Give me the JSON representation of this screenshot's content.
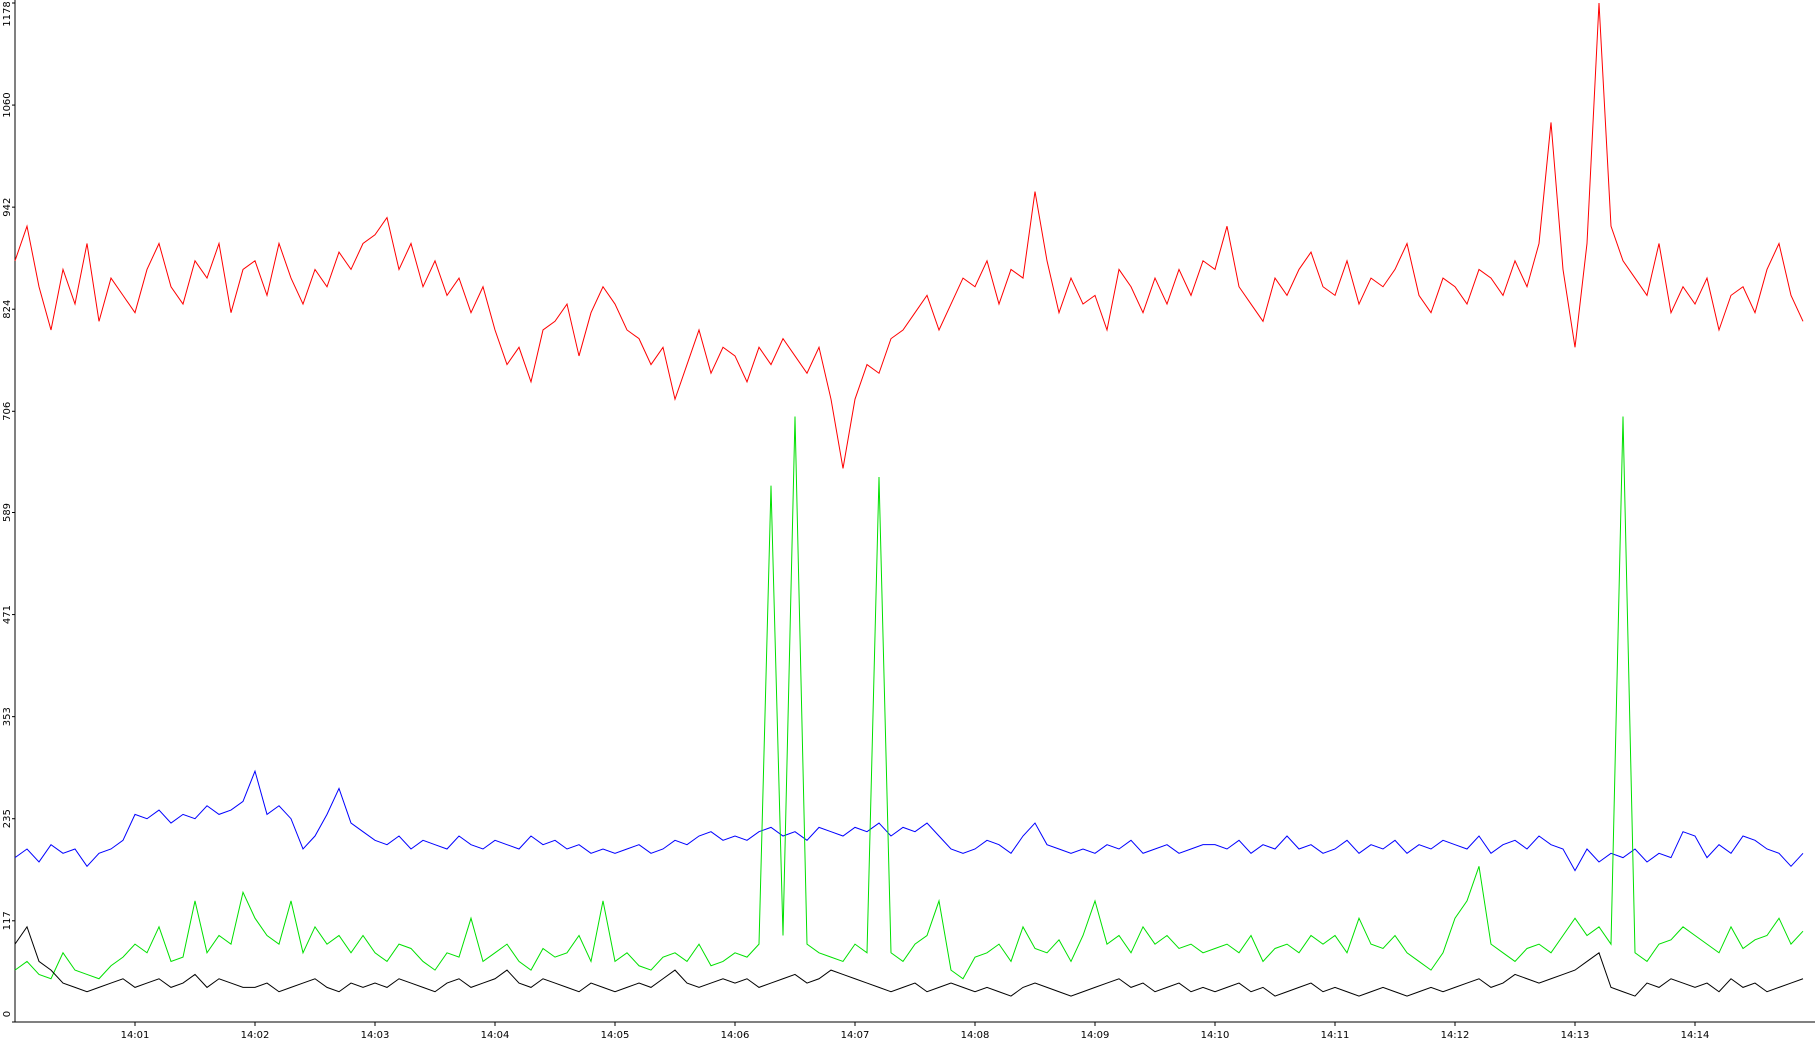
{
  "chart_data": {
    "type": "line",
    "xlim": [
      840,
      855
    ],
    "xticks": [
      {
        "value": 841,
        "label": "14:01"
      },
      {
        "value": 842,
        "label": "14:02"
      },
      {
        "value": 843,
        "label": "14:03"
      },
      {
        "value": 844,
        "label": "14:04"
      },
      {
        "value": 845,
        "label": "14:05"
      },
      {
        "value": 846,
        "label": "14:06"
      },
      {
        "value": 847,
        "label": "14:07"
      },
      {
        "value": 848,
        "label": "14:08"
      },
      {
        "value": 849,
        "label": "14:09"
      },
      {
        "value": 850,
        "label": "14:10"
      },
      {
        "value": 851,
        "label": "14:11"
      },
      {
        "value": 852,
        "label": "14:12"
      },
      {
        "value": 853,
        "label": "14:13"
      },
      {
        "value": 854,
        "label": "14:14"
      }
    ],
    "ylim": [
      0,
      1178
    ],
    "yticks": [
      0,
      117,
      235,
      353,
      471,
      589,
      706,
      824,
      942,
      1060,
      1178
    ],
    "x": [
      840.0,
      840.1,
      840.2,
      840.3,
      840.4,
      840.5,
      840.6,
      840.7,
      840.8,
      840.9,
      841.0,
      841.1,
      841.2,
      841.3,
      841.4,
      841.5,
      841.6,
      841.7,
      841.8,
      841.9,
      842.0,
      842.1,
      842.2,
      842.3,
      842.4,
      842.5,
      842.6,
      842.7,
      842.8,
      842.9,
      843.0,
      843.1,
      843.2,
      843.3,
      843.4,
      843.5,
      843.6,
      843.7,
      843.8,
      843.9,
      844.0,
      844.1,
      844.2,
      844.3,
      844.4,
      844.5,
      844.6,
      844.7,
      844.8,
      844.9,
      845.0,
      845.1,
      845.2,
      845.3,
      845.4,
      845.5,
      845.6,
      845.7,
      845.8,
      845.9,
      846.0,
      846.1,
      846.2,
      846.3,
      846.4,
      846.5,
      846.6,
      846.7,
      846.8,
      846.9,
      847.0,
      847.1,
      847.2,
      847.3,
      847.4,
      847.5,
      847.6,
      847.7,
      847.8,
      847.9,
      848.0,
      848.1,
      848.2,
      848.3,
      848.4,
      848.5,
      848.6,
      848.7,
      848.8,
      848.9,
      849.0,
      849.1,
      849.2,
      849.3,
      849.4,
      849.5,
      849.6,
      849.7,
      849.8,
      849.9,
      850.0,
      850.1,
      850.2,
      850.3,
      850.4,
      850.5,
      850.6,
      850.7,
      850.8,
      850.9,
      851.0,
      851.1,
      851.2,
      851.3,
      851.4,
      851.5,
      851.6,
      851.7,
      851.8,
      851.9,
      852.0,
      852.1,
      852.2,
      852.3,
      852.4,
      852.5,
      852.6,
      852.7,
      852.8,
      852.9,
      853.0,
      853.1,
      853.2,
      853.3,
      853.4,
      853.5,
      853.6,
      853.7,
      853.8,
      853.9,
      854.0,
      854.1,
      854.2,
      854.3,
      854.4,
      854.5,
      854.6,
      854.7,
      854.8,
      854.9
    ],
    "series": [
      {
        "color": "#ff0000",
        "values": [
          880,
          920,
          850,
          800,
          870,
          830,
          900,
          810,
          860,
          840,
          820,
          870,
          900,
          850,
          830,
          880,
          860,
          900,
          820,
          870,
          880,
          840,
          900,
          860,
          830,
          870,
          850,
          890,
          870,
          900,
          910,
          930,
          870,
          900,
          850,
          880,
          840,
          860,
          820,
          850,
          800,
          760,
          780,
          740,
          800,
          810,
          830,
          770,
          820,
          850,
          830,
          800,
          790,
          760,
          780,
          720,
          760,
          800,
          750,
          780,
          770,
          740,
          780,
          760,
          790,
          770,
          750,
          780,
          720,
          640,
          720,
          760,
          750,
          790,
          800,
          820,
          840,
          800,
          830,
          860,
          850,
          880,
          830,
          870,
          860,
          960,
          880,
          820,
          860,
          830,
          840,
          800,
          870,
          850,
          820,
          860,
          830,
          870,
          840,
          880,
          870,
          920,
          850,
          830,
          810,
          860,
          840,
          870,
          890,
          850,
          840,
          880,
          830,
          860,
          850,
          870,
          900,
          840,
          820,
          860,
          850,
          830,
          870,
          860,
          840,
          880,
          850,
          900,
          1040,
          870,
          780,
          900,
          1178,
          920,
          880,
          860,
          840,
          900,
          820,
          850,
          830,
          860,
          800,
          840,
          850,
          820,
          870,
          900,
          840,
          810
        ]
      },
      {
        "color": "#0000ff",
        "values": [
          190,
          200,
          185,
          205,
          195,
          200,
          180,
          195,
          200,
          210,
          240,
          235,
          245,
          230,
          240,
          235,
          250,
          240,
          245,
          255,
          290,
          240,
          250,
          235,
          200,
          215,
          240,
          270,
          230,
          220,
          210,
          205,
          215,
          200,
          210,
          205,
          200,
          215,
          205,
          200,
          210,
          205,
          200,
          215,
          205,
          210,
          200,
          205,
          195,
          200,
          195,
          200,
          205,
          195,
          200,
          210,
          205,
          215,
          220,
          210,
          215,
          210,
          220,
          225,
          215,
          220,
          210,
          225,
          220,
          215,
          225,
          220,
          230,
          215,
          225,
          220,
          230,
          215,
          200,
          195,
          200,
          210,
          205,
          195,
          215,
          230,
          205,
          200,
          195,
          200,
          195,
          205,
          200,
          210,
          195,
          200,
          205,
          195,
          200,
          205,
          205,
          200,
          210,
          195,
          205,
          200,
          215,
          200,
          205,
          195,
          200,
          210,
          195,
          205,
          200,
          210,
          195,
          205,
          200,
          210,
          205,
          200,
          215,
          195,
          205,
          210,
          200,
          215,
          205,
          200,
          175,
          200,
          185,
          195,
          190,
          200,
          185,
          195,
          190,
          220,
          215,
          190,
          205,
          195,
          215,
          210,
          200,
          195,
          180,
          195
        ]
      },
      {
        "color": "#00e000",
        "values": [
          60,
          70,
          55,
          50,
          80,
          60,
          55,
          50,
          65,
          75,
          90,
          80,
          110,
          70,
          75,
          140,
          80,
          100,
          90,
          150,
          120,
          100,
          90,
          140,
          80,
          110,
          90,
          100,
          80,
          100,
          80,
          70,
          90,
          85,
          70,
          60,
          80,
          75,
          120,
          70,
          80,
          90,
          70,
          60,
          85,
          75,
          80,
          100,
          70,
          140,
          70,
          80,
          65,
          60,
          75,
          80,
          70,
          90,
          65,
          70,
          80,
          75,
          90,
          620,
          100,
          700,
          90,
          80,
          75,
          70,
          90,
          80,
          630,
          80,
          70,
          90,
          100,
          140,
          60,
          50,
          75,
          80,
          90,
          70,
          110,
          85,
          80,
          95,
          70,
          100,
          140,
          90,
          100,
          80,
          110,
          90,
          100,
          85,
          90,
          80,
          85,
          90,
          80,
          100,
          70,
          85,
          90,
          80,
          100,
          90,
          100,
          80,
          120,
          90,
          85,
          100,
          80,
          70,
          60,
          80,
          120,
          140,
          180,
          90,
          80,
          70,
          85,
          90,
          80,
          100,
          120,
          100,
          110,
          90,
          700,
          80,
          70,
          90,
          95,
          110,
          100,
          90,
          80,
          110,
          85,
          95,
          100,
          120,
          90,
          105
        ]
      },
      {
        "color": "#000000",
        "values": [
          90,
          110,
          70,
          60,
          45,
          40,
          35,
          40,
          45,
          50,
          40,
          45,
          50,
          40,
          45,
          55,
          40,
          50,
          45,
          40,
          40,
          45,
          35,
          40,
          45,
          50,
          40,
          35,
          45,
          40,
          45,
          40,
          50,
          45,
          40,
          35,
          45,
          50,
          40,
          45,
          50,
          60,
          45,
          40,
          50,
          45,
          40,
          35,
          45,
          40,
          35,
          40,
          45,
          40,
          50,
          60,
          45,
          40,
          45,
          50,
          45,
          50,
          40,
          45,
          50,
          55,
          45,
          50,
          60,
          55,
          50,
          45,
          40,
          35,
          40,
          45,
          35,
          40,
          45,
          40,
          35,
          40,
          35,
          30,
          40,
          45,
          40,
          35,
          30,
          35,
          40,
          45,
          50,
          40,
          45,
          35,
          40,
          45,
          35,
          40,
          35,
          40,
          45,
          35,
          40,
          30,
          35,
          40,
          45,
          35,
          40,
          35,
          30,
          35,
          40,
          35,
          30,
          35,
          40,
          35,
          40,
          45,
          50,
          40,
          45,
          55,
          50,
          45,
          50,
          55,
          60,
          70,
          80,
          40,
          35,
          30,
          45,
          40,
          50,
          45,
          40,
          45,
          35,
          50,
          40,
          45,
          35,
          40,
          45,
          50
        ]
      }
    ]
  }
}
